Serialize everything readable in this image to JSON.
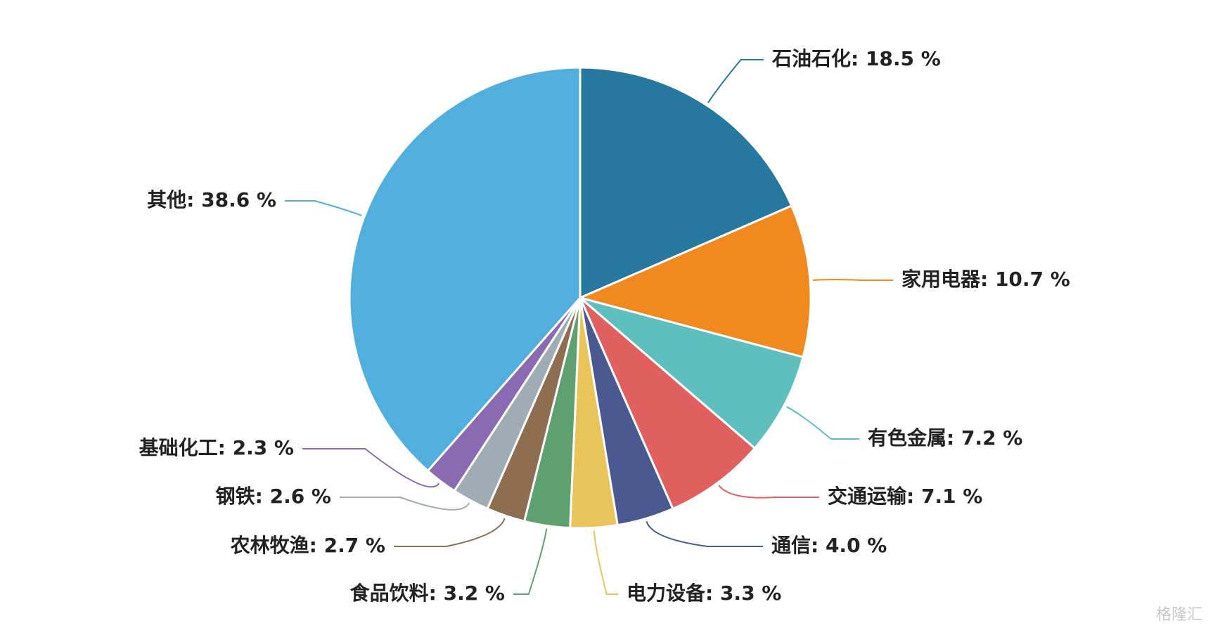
{
  "chart_data": {
    "type": "pie",
    "values": [
      18.5,
      10.7,
      7.2,
      7.1,
      4.0,
      3.3,
      3.2,
      2.7,
      2.6,
      2.3,
      38.6
    ],
    "value_labels": [
      "石油石化: 18.5 %",
      "家用电器: 10.7 %",
      "有色金属: 7.2 %",
      "交通运输: 7.1 %",
      "通信: 4.0 %",
      "电力设备: 3.3 %",
      "食品饮料: 3.2 %",
      "农林牧渔: 2.7 %",
      "钢铁: 2.6 %",
      "基础化工: 2.3 %",
      "其他: 38.6 %"
    ],
    "colors": [
      "#26789f",
      "#f08a1e",
      "#5fbfbf",
      "#e06060",
      "#4a5a90",
      "#e8c45a",
      "#5fa070",
      "#8d6e50",
      "#a0acb4",
      "#8a6ab0",
      "#52aedc"
    ]
  },
  "watermark": "格隆汇"
}
